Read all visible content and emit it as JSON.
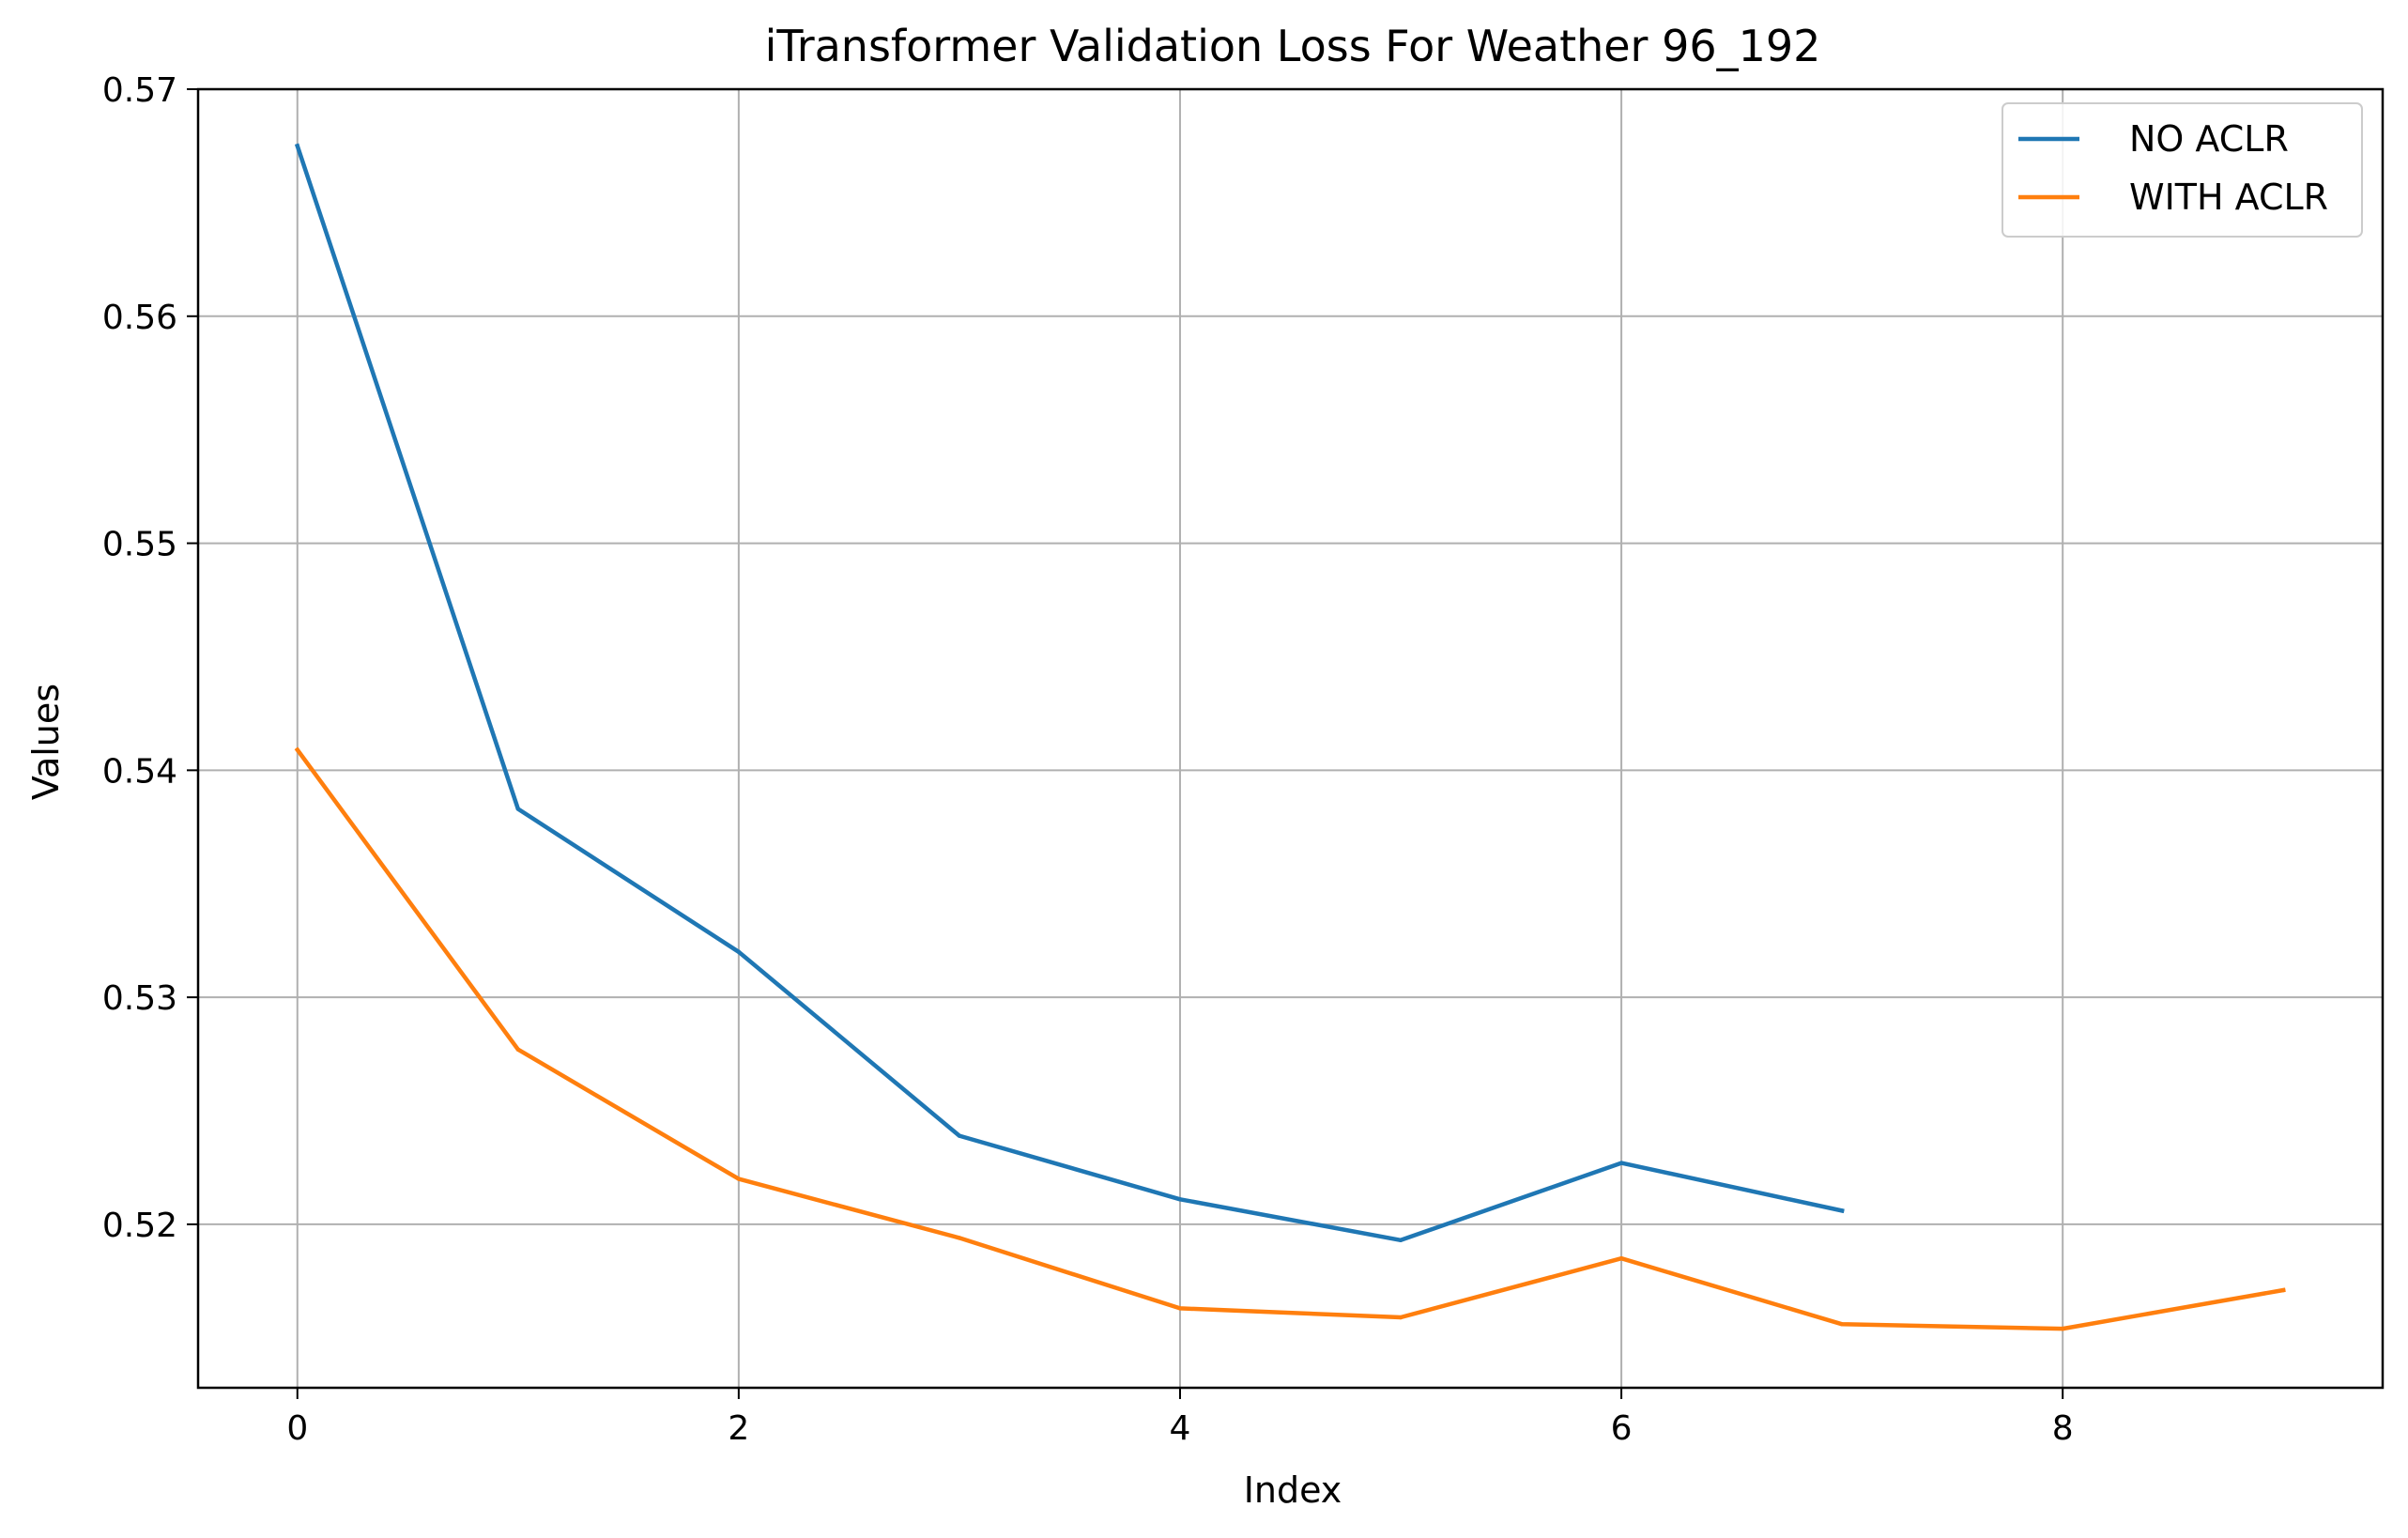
{
  "chart_data": {
    "type": "line",
    "title": "iTransformer Validation Loss For Weather 96_192",
    "xlabel": "Index",
    "ylabel": "Values",
    "xlim": [
      -0.45,
      9.45
    ],
    "ylim": [
      0.5128,
      0.57
    ],
    "xticks": [
      0,
      2,
      4,
      6,
      8
    ],
    "yticks": [
      0.52,
      0.53,
      0.54,
      0.55,
      0.56,
      0.57
    ],
    "ytick_labels": [
      "0.52",
      "0.53",
      "0.54",
      "0.55",
      "0.56",
      "0.57"
    ],
    "grid": true,
    "legend_position": "top-right",
    "series": [
      {
        "name": "NO ACLR",
        "color": "#1f77b4",
        "x": [
          0,
          1,
          2,
          3,
          4,
          5,
          6,
          7
        ],
        "values": [
          0.5675,
          0.5383,
          0.532,
          0.5239,
          0.5211,
          0.5193,
          0.5227,
          0.5206
        ]
      },
      {
        "name": "WITH ACLR",
        "color": "#ff7f0e",
        "x": [
          0,
          1,
          2,
          3,
          4,
          5,
          6,
          7,
          8,
          9
        ],
        "values": [
          0.5409,
          0.5277,
          0.522,
          0.5194,
          0.5163,
          0.5159,
          0.5185,
          0.5156,
          0.5154,
          0.5171
        ]
      }
    ]
  }
}
